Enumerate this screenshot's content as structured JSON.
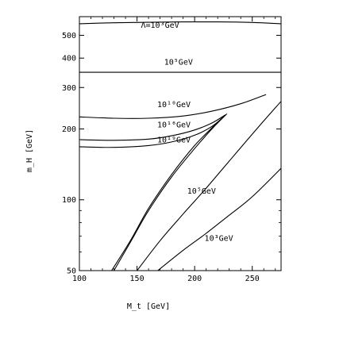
{
  "chart_data": {
    "type": "line",
    "xlabel": "M_t [GeV]",
    "ylabel": "m_H [GeV]",
    "xlim": [
      100,
      275
    ],
    "ylim": [
      50,
      600
    ],
    "yscale": "log",
    "xticks": [
      100,
      150,
      200,
      250
    ],
    "yticks": [
      50,
      100,
      200,
      300,
      400,
      500
    ],
    "grid": false,
    "legend": "none",
    "curve_labels": [
      {
        "text": "Λ=10³GeV",
        "x": 170,
        "y": 538
      },
      {
        "text": "10⁵GeV",
        "x": 186,
        "y": 375
      },
      {
        "text": "10¹⁰GeV",
        "x": 182,
        "y": 248
      },
      {
        "text": "10¹⁶GeV",
        "x": 182,
        "y": 203
      },
      {
        "text": "10¹⁹GeV",
        "x": 182,
        "y": 175
      },
      {
        "text": "10⁵GeV",
        "x": 206,
        "y": 106
      },
      {
        "text": "10³GeV",
        "x": 221,
        "y": 67
      }
    ],
    "series": [
      {
        "x": [
          100,
          130,
          160,
          190,
          220,
          250,
          275
        ],
        "y": [
          560,
          565,
          568,
          570,
          570,
          567,
          560
        ]
      },
      {
        "x": [
          100,
          275
        ],
        "y": [
          348,
          348
        ]
      },
      {
        "x": [
          100,
          130,
          160,
          190,
          215,
          240,
          262
        ],
        "y": [
          225,
          222,
          222,
          227,
          238,
          256,
          280
        ]
      },
      {
        "x": [
          100,
          130,
          160,
          180,
          200,
          215,
          227
        ],
        "y": [
          180,
          179,
          181,
          187,
          198,
          212,
          230
        ]
      },
      {
        "x": [
          100,
          130,
          160,
          180,
          200,
          215,
          225
        ],
        "y": [
          168,
          167,
          170,
          176,
          188,
          205,
          225
        ]
      },
      {
        "x": [
          130,
          145,
          160,
          180,
          200,
          215,
          228
        ],
        "y": [
          50,
          67,
          90,
          125,
          165,
          200,
          232
        ]
      },
      {
        "x": [
          128,
          145,
          160,
          180,
          200,
          215,
          225
        ],
        "y": [
          50,
          68,
          92,
          128,
          170,
          202,
          225
        ]
      },
      {
        "x": [
          150,
          170,
          190,
          210,
          230,
          255,
          275
        ],
        "y": [
          50,
          67,
          87,
          112,
          146,
          203,
          262
        ]
      },
      {
        "x": [
          168,
          190,
          210,
          230,
          250,
          275
        ],
        "y": [
          50,
          61,
          72,
          86,
          103,
          136
        ]
      }
    ]
  }
}
